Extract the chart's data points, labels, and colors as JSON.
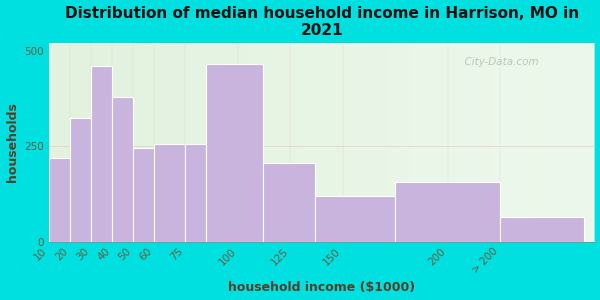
{
  "title": "Distribution of median household income in Harrison, MO in\n2021",
  "xlabel": "household income ($1000)",
  "ylabel": "households",
  "bar_heights": [
    220,
    325,
    460,
    380,
    245,
    255,
    255,
    465,
    205,
    120,
    155,
    65
  ],
  "bar_lefts": [
    10,
    20,
    30,
    40,
    50,
    60,
    75,
    85,
    112,
    137,
    175,
    225
  ],
  "bar_rights": [
    20,
    30,
    40,
    50,
    60,
    75,
    85,
    112,
    137,
    175,
    225,
    265
  ],
  "tick_positions": [
    10,
    20,
    30,
    40,
    50,
    60,
    75,
    100,
    125,
    150,
    200,
    225
  ],
  "tick_labels": [
    "10",
    "20",
    "30",
    "40",
    "50",
    "60",
    "75",
    "100",
    "125",
    "150",
    "200",
    "> 200"
  ],
  "bar_color": "#c8b4dc",
  "bar_edgecolor": "#ffffff",
  "ylim": [
    0,
    520
  ],
  "yticks": [
    0,
    250,
    500
  ],
  "bg_outer": "#00e0e0",
  "bg_plot": "#eaf5e8",
  "watermark": "  City-Data.com",
  "title_fontsize": 11,
  "axis_label_fontsize": 9,
  "tick_fontsize": 7.5
}
